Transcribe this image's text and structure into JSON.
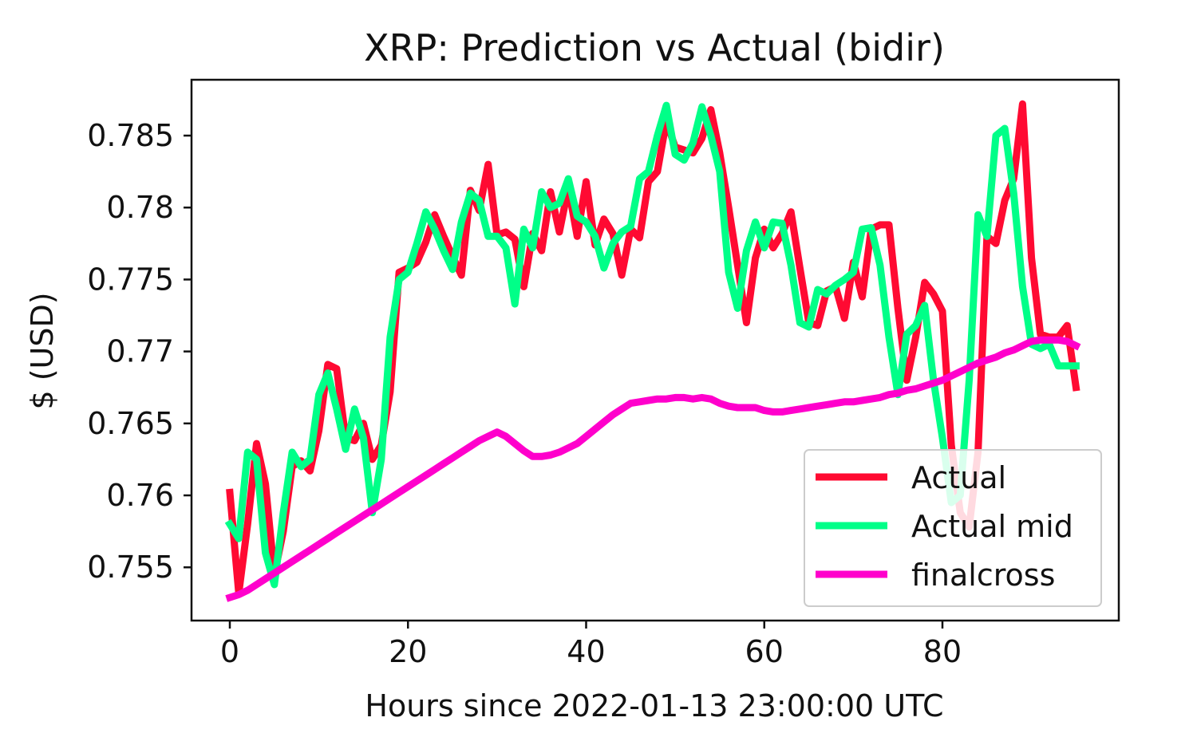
{
  "chart_data": {
    "type": "line",
    "title": "XRP: Prediction vs Actual (bidir)",
    "xlabel": "Hours since 2022-01-13 23:00:00 UTC",
    "ylabel": "$ (USD)",
    "xlim": [
      -4.3,
      99.8
    ],
    "ylim": [
      0.7513,
      0.78888
    ],
    "xticks": [
      0,
      20,
      40,
      60,
      80
    ],
    "xtick_labels": [
      "0",
      "20",
      "40",
      "60",
      "80"
    ],
    "yticks": [
      0.755,
      0.76,
      0.765,
      0.77,
      0.775,
      0.78,
      0.785
    ],
    "ytick_labels": [
      "0.755",
      "0.76",
      "0.765",
      "0.77",
      "0.775",
      "0.78",
      "0.785"
    ],
    "legend_position": "lower-right",
    "x": [
      0,
      1,
      2,
      3,
      4,
      5,
      6,
      7,
      8,
      9,
      10,
      11,
      12,
      13,
      14,
      15,
      16,
      17,
      18,
      19,
      20,
      21,
      22,
      23,
      24,
      25,
      26,
      27,
      28,
      29,
      30,
      31,
      32,
      33,
      34,
      35,
      36,
      37,
      38,
      39,
      40,
      41,
      42,
      43,
      44,
      45,
      46,
      47,
      48,
      49,
      50,
      51,
      52,
      53,
      54,
      55,
      56,
      57,
      58,
      59,
      60,
      61,
      62,
      63,
      64,
      65,
      66,
      67,
      68,
      69,
      70,
      71,
      72,
      73,
      74,
      75,
      76,
      77,
      78,
      79,
      80,
      81,
      82,
      83,
      84,
      85,
      86,
      87,
      88,
      89,
      90,
      91,
      92,
      93,
      94,
      95
    ],
    "series": [
      {
        "name": "Actual",
        "color": "#ff0a32",
        "values": [
          0.7602,
          0.7532,
          0.758,
          0.7636,
          0.7608,
          0.7545,
          0.7575,
          0.762,
          0.7624,
          0.7617,
          0.7645,
          0.7691,
          0.7688,
          0.764,
          0.7638,
          0.765,
          0.7625,
          0.7635,
          0.7672,
          0.7755,
          0.7758,
          0.7762,
          0.7776,
          0.7795,
          0.778,
          0.7766,
          0.7753,
          0.7812,
          0.7798,
          0.783,
          0.7781,
          0.7783,
          0.7778,
          0.7745,
          0.7782,
          0.777,
          0.7811,
          0.7783,
          0.7814,
          0.778,
          0.7818,
          0.7774,
          0.7792,
          0.7782,
          0.7753,
          0.7785,
          0.7779,
          0.7818,
          0.7825,
          0.786,
          0.7842,
          0.784,
          0.7838,
          0.7848,
          0.7868,
          0.7838,
          0.78,
          0.776,
          0.772,
          0.7765,
          0.7785,
          0.7772,
          0.7782,
          0.7797,
          0.7758,
          0.772,
          0.7718,
          0.7742,
          0.7745,
          0.7723,
          0.7762,
          0.7738,
          0.7785,
          0.7788,
          0.7788,
          0.773,
          0.768,
          0.771,
          0.7748,
          0.774,
          0.7728,
          0.7635,
          0.7588,
          0.7578,
          0.763,
          0.778,
          0.7775,
          0.7805,
          0.782,
          0.7872,
          0.7765,
          0.7712,
          0.771,
          0.771,
          0.7718,
          0.7675
        ]
      },
      {
        "name": "Actual mid",
        "color": "#00ff88",
        "values": [
          0.758,
          0.757,
          0.763,
          0.7625,
          0.756,
          0.7538,
          0.7588,
          0.763,
          0.762,
          0.7625,
          0.767,
          0.7685,
          0.766,
          0.7632,
          0.766,
          0.764,
          0.7588,
          0.7625,
          0.771,
          0.775,
          0.7755,
          0.7775,
          0.7797,
          0.7785,
          0.777,
          0.7757,
          0.779,
          0.781,
          0.7805,
          0.778,
          0.778,
          0.7772,
          0.7733,
          0.7785,
          0.7772,
          0.7811,
          0.78,
          0.7803,
          0.782,
          0.7794,
          0.779,
          0.778,
          0.7758,
          0.7775,
          0.7783,
          0.7787,
          0.782,
          0.7825,
          0.785,
          0.7871,
          0.7837,
          0.7833,
          0.7845,
          0.787,
          0.785,
          0.7825,
          0.7755,
          0.773,
          0.777,
          0.779,
          0.7772,
          0.779,
          0.7789,
          0.776,
          0.772,
          0.7717,
          0.7743,
          0.774,
          0.7746,
          0.775,
          0.7755,
          0.7785,
          0.7786,
          0.776,
          0.771,
          0.767,
          0.7712,
          0.7718,
          0.7732,
          0.768,
          0.764,
          0.7595,
          0.76,
          0.768,
          0.7795,
          0.778,
          0.785,
          0.7855,
          0.781,
          0.7745,
          0.7705,
          0.7702,
          0.7705,
          0.769,
          0.769,
          0.769
        ]
      },
      {
        "name": "finalcross",
        "color": "#ff00cc",
        "values": [
          0.7529,
          0.7531,
          0.7534,
          0.7538,
          0.7542,
          0.7546,
          0.755,
          0.7554,
          0.7558,
          0.7562,
          0.7566,
          0.757,
          0.7574,
          0.7578,
          0.7582,
          0.7586,
          0.759,
          0.7594,
          0.7598,
          0.7602,
          0.7606,
          0.761,
          0.7614,
          0.7618,
          0.7622,
          0.7626,
          0.763,
          0.7634,
          0.7638,
          0.7641,
          0.7644,
          0.7641,
          0.7636,
          0.7631,
          0.7627,
          0.7627,
          0.7628,
          0.763,
          0.7633,
          0.7636,
          0.7641,
          0.7646,
          0.7651,
          0.7656,
          0.766,
          0.7664,
          0.7665,
          0.7666,
          0.7667,
          0.7667,
          0.7668,
          0.7668,
          0.7667,
          0.7668,
          0.7667,
          0.7664,
          0.7662,
          0.7661,
          0.7661,
          0.7661,
          0.7659,
          0.7658,
          0.7658,
          0.7659,
          0.766,
          0.7661,
          0.7662,
          0.7663,
          0.7664,
          0.7665,
          0.7665,
          0.7666,
          0.7667,
          0.7668,
          0.767,
          0.7671,
          0.7673,
          0.7674,
          0.7676,
          0.7678,
          0.768,
          0.7683,
          0.7686,
          0.7689,
          0.7692,
          0.7694,
          0.7696,
          0.7699,
          0.7701,
          0.7704,
          0.7707,
          0.7708,
          0.7708,
          0.7708,
          0.7707,
          0.7704
        ]
      }
    ]
  }
}
